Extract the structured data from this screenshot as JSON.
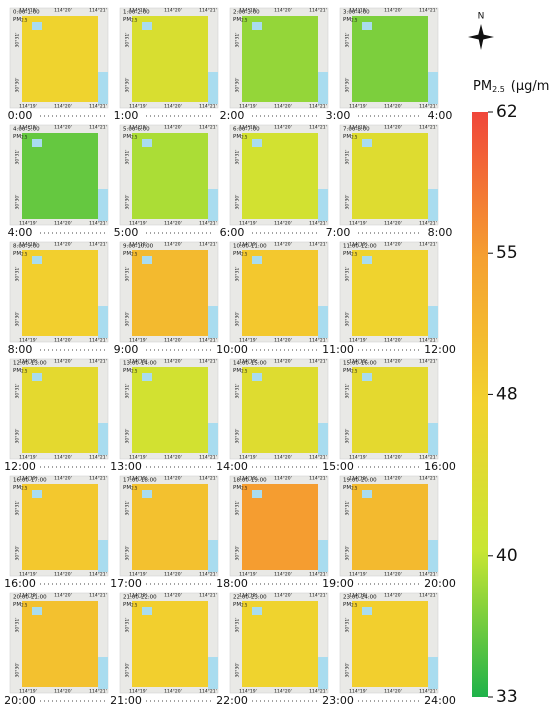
{
  "north_label": "N",
  "colorbar": {
    "title_main": "PM",
    "title_sub": "2.5",
    "unit": "(μg/m",
    "unit_sup": "3",
    "unit_end": ")",
    "clim": [
      33,
      62
    ],
    "ticks": [
      62,
      55,
      48,
      40,
      33
    ],
    "colormap": [
      "#1fb24a",
      "#c8e632",
      "#f2d22e",
      "#f5a030",
      "#f0463a"
    ]
  },
  "pollutant": {
    "main": "PM",
    "sub": "2.5"
  },
  "lon_labels": [
    "114°19'",
    "114°20'",
    "114°21'"
  ],
  "lat_labels": [
    "30°31'",
    "30°30'"
  ],
  "rows": [
    {
      "times": [
        "0:00",
        "1:00",
        "2:00",
        "3:00",
        "4:00"
      ],
      "panels": [
        {
          "label": "0:00-1:00",
          "value": 47
        },
        {
          "label": "1:00-2:00",
          "value": 43
        },
        {
          "label": "2:00-3:00",
          "value": 38
        },
        {
          "label": "3:00-4:00",
          "value": 37
        }
      ]
    },
    {
      "times": [
        "4:00",
        "5:00",
        "6:00",
        "7:00",
        "8:00"
      ],
      "panels": [
        {
          "label": "4:00-5:00",
          "value": 36
        },
        {
          "label": "5:00-6:00",
          "value": 39
        },
        {
          "label": "6:00-7:00",
          "value": 42
        },
        {
          "label": "7:00-8:00",
          "value": 44
        }
      ]
    },
    {
      "times": [
        "8:00",
        "9:00",
        "10:00",
        "11:00",
        "12:00"
      ],
      "panels": [
        {
          "label": "8:00-9:00",
          "value": 48
        },
        {
          "label": "9:00-10:00",
          "value": 51
        },
        {
          "label": "10:00-11:00",
          "value": 49
        },
        {
          "label": "11:00-12:00",
          "value": 47
        }
      ]
    },
    {
      "times": [
        "12:00",
        "13:00",
        "14:00",
        "15:00",
        "16:00"
      ],
      "panels": [
        {
          "label": "12:00-13:00",
          "value": 45
        },
        {
          "label": "13:00-14:00",
          "value": 42
        },
        {
          "label": "14:00-15:00",
          "value": 44
        },
        {
          "label": "15:00-16:00",
          "value": 45
        }
      ]
    },
    {
      "times": [
        "16:00",
        "17:00",
        "18:00",
        "19:00",
        "20:00"
      ],
      "panels": [
        {
          "label": "16:00-17:00",
          "value": 49
        },
        {
          "label": "17:00-18:00",
          "value": 50
        },
        {
          "label": "18:00-19:00",
          "value": 55
        },
        {
          "label": "19:00-20:00",
          "value": 51
        }
      ]
    },
    {
      "times": [
        "20:00",
        "21:00",
        "22:00",
        "23:00",
        "24:00"
      ],
      "panels": [
        {
          "label": "20:00-21:00",
          "value": 50
        },
        {
          "label": "21:00-22:00",
          "value": 48
        },
        {
          "label": "22:00-23:00",
          "value": 47
        },
        {
          "label": "23:00-24:00",
          "value": 48
        }
      ]
    }
  ]
}
